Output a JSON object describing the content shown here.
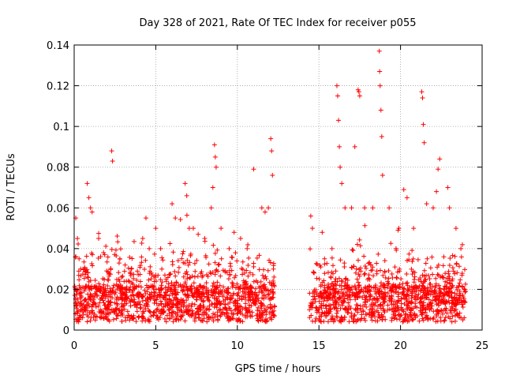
{
  "chart_data": {
    "type": "scatter",
    "title": "Day 328 of 2021, Rate Of TEC Index for receiver p055",
    "xlabel": "GPS time / hours",
    "ylabel": "ROTI / TECUs",
    "xlim": [
      0,
      25
    ],
    "ylim": [
      0,
      0.14
    ],
    "xticks": [
      0,
      5,
      10,
      15,
      20,
      25
    ],
    "xtick_labels": [
      "0",
      "5",
      "10",
      "15",
      "20",
      "25"
    ],
    "yticks": [
      0,
      0.02,
      0.04,
      0.06,
      0.08,
      0.1,
      0.12,
      0.14
    ],
    "ytick_labels": [
      "0",
      "0.02",
      "0.04",
      "0.06",
      "0.08",
      "0.1",
      "0.12",
      "0.14"
    ],
    "grid": true,
    "marker": "+",
    "color": "#ff0000",
    "data_gap_hours": [
      12.3,
      14.4
    ],
    "points": [
      [
        0.1,
        0.055
      ],
      [
        0.2,
        0.045
      ],
      [
        0.3,
        0.035
      ],
      [
        0.4,
        0.03
      ],
      [
        0.8,
        0.072
      ],
      [
        0.9,
        0.065
      ],
      [
        1.0,
        0.06
      ],
      [
        1.1,
        0.058
      ],
      [
        1.5,
        0.045
      ],
      [
        1.8,
        0.038
      ],
      [
        2.3,
        0.088
      ],
      [
        2.35,
        0.083
      ],
      [
        2.8,
        0.035
      ],
      [
        3.5,
        0.03
      ],
      [
        4.2,
        0.045
      ],
      [
        4.4,
        0.055
      ],
      [
        4.6,
        0.04
      ],
      [
        5.0,
        0.05
      ],
      [
        5.3,
        0.04
      ],
      [
        6.0,
        0.062
      ],
      [
        6.2,
        0.055
      ],
      [
        6.8,
        0.072
      ],
      [
        6.9,
        0.066
      ],
      [
        7.3,
        0.05
      ],
      [
        7.6,
        0.047
      ],
      [
        8.0,
        0.045
      ],
      [
        8.4,
        0.06
      ],
      [
        8.5,
        0.07
      ],
      [
        8.6,
        0.091
      ],
      [
        8.65,
        0.085
      ],
      [
        8.7,
        0.08
      ],
      [
        9.0,
        0.05
      ],
      [
        9.5,
        0.04
      ],
      [
        9.8,
        0.048
      ],
      [
        10.2,
        0.045
      ],
      [
        10.6,
        0.04
      ],
      [
        11.0,
        0.079
      ],
      [
        11.5,
        0.06
      ],
      [
        11.7,
        0.058
      ],
      [
        11.9,
        0.06
      ],
      [
        12.05,
        0.094
      ],
      [
        12.1,
        0.088
      ],
      [
        12.15,
        0.076
      ],
      [
        14.5,
        0.056
      ],
      [
        14.6,
        0.05
      ],
      [
        15.2,
        0.048
      ],
      [
        15.8,
        0.04
      ],
      [
        16.1,
        0.12
      ],
      [
        16.15,
        0.115
      ],
      [
        16.2,
        0.103
      ],
      [
        16.25,
        0.09
      ],
      [
        16.3,
        0.08
      ],
      [
        16.4,
        0.072
      ],
      [
        16.6,
        0.06
      ],
      [
        17.0,
        0.06
      ],
      [
        17.2,
        0.09
      ],
      [
        17.4,
        0.118
      ],
      [
        17.45,
        0.117
      ],
      [
        17.5,
        0.115
      ],
      [
        17.8,
        0.06
      ],
      [
        18.3,
        0.06
      ],
      [
        18.7,
        0.137
      ],
      [
        18.72,
        0.127
      ],
      [
        18.75,
        0.12
      ],
      [
        18.8,
        0.108
      ],
      [
        18.85,
        0.095
      ],
      [
        18.9,
        0.076
      ],
      [
        19.3,
        0.06
      ],
      [
        19.9,
        0.05
      ],
      [
        20.2,
        0.069
      ],
      [
        20.4,
        0.065
      ],
      [
        20.8,
        0.05
      ],
      [
        21.3,
        0.117
      ],
      [
        21.35,
        0.114
      ],
      [
        21.4,
        0.101
      ],
      [
        21.45,
        0.092
      ],
      [
        21.6,
        0.062
      ],
      [
        22.0,
        0.06
      ],
      [
        22.2,
        0.068
      ],
      [
        22.3,
        0.079
      ],
      [
        22.4,
        0.084
      ],
      [
        22.9,
        0.07
      ],
      [
        23.0,
        0.06
      ],
      [
        23.4,
        0.05
      ],
      [
        23.7,
        0.04
      ]
    ]
  }
}
